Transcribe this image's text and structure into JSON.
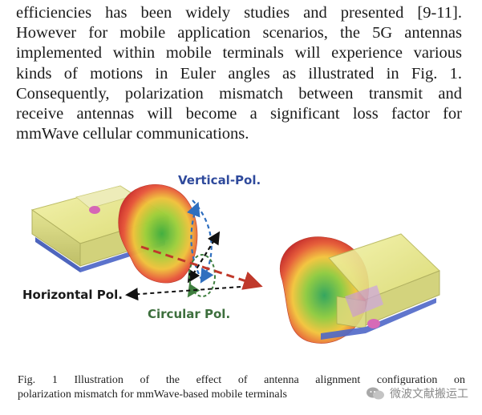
{
  "paragraph_lines": [
    "efficiencies has been widely studies and presented [9-11].",
    "However for mobile application scenarios, the 5G antennas",
    "implemented within mobile terminals will experience various",
    "kinds of motions in Euler angles as illustrated in Fig. 1.",
    "Consequently, polarization mismatch between transmit and",
    "receive antennas will become a significant loss factor for",
    "mmWave cellular communications."
  ],
  "figure": {
    "labels": {
      "vertical": "Vertical-Pol.",
      "horizontal": "Horizontal Pol.",
      "circular": "Circular Pol."
    }
  },
  "caption_lines": [
    "Fig. 1 Illustration of the effect of antenna alignment configuration on",
    "polarization mismatch for mmWave-based mobile terminals"
  ],
  "watermark": {
    "text": "微波文献搬运工"
  }
}
